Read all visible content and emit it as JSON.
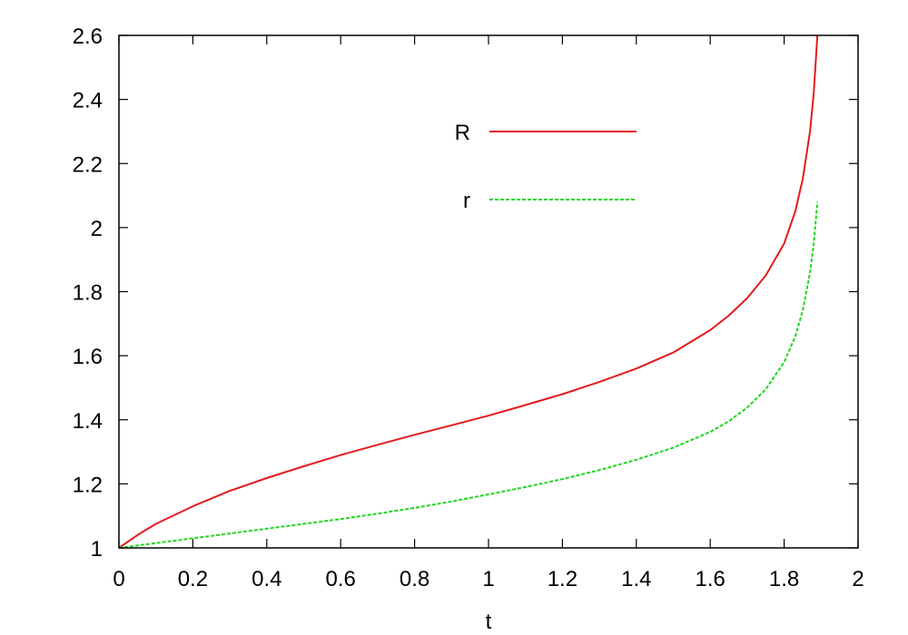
{
  "chart_data": {
    "type": "line",
    "title": "",
    "xlabel": "t",
    "ylabel": "",
    "xlim": [
      0,
      2
    ],
    "ylim": [
      1,
      2.6
    ],
    "xticks": [
      "0",
      "0.2",
      "0.4",
      "0.6",
      "0.8",
      "1",
      "1.2",
      "1.4",
      "1.6",
      "1.8",
      "2"
    ],
    "yticks": [
      "1",
      "1.2",
      "1.4",
      "1.6",
      "1.8",
      "2",
      "2.2",
      "2.4",
      "2.6"
    ],
    "grid": false,
    "legend_position": "top-center",
    "series": [
      {
        "name": "R",
        "color": "#e41a1c",
        "dash": "solid",
        "x": [
          0,
          0.05,
          0.1,
          0.2,
          0.3,
          0.4,
          0.5,
          0.6,
          0.7,
          0.8,
          0.9,
          1.0,
          1.1,
          1.2,
          1.3,
          1.4,
          1.5,
          1.6,
          1.65,
          1.7,
          1.75,
          1.8,
          1.83,
          1.85,
          1.87,
          1.88,
          1.89
        ],
        "y": [
          1.0,
          1.04,
          1.075,
          1.13,
          1.178,
          1.218,
          1.255,
          1.29,
          1.322,
          1.353,
          1.383,
          1.413,
          1.446,
          1.48,
          1.518,
          1.56,
          1.61,
          1.68,
          1.725,
          1.78,
          1.85,
          1.95,
          2.05,
          2.15,
          2.3,
          2.42,
          2.6
        ]
      },
      {
        "name": "r",
        "color": "#1fd51f",
        "dash": "dashed",
        "x": [
          0,
          0.1,
          0.2,
          0.3,
          0.4,
          0.5,
          0.6,
          0.7,
          0.8,
          0.9,
          1.0,
          1.1,
          1.2,
          1.3,
          1.4,
          1.5,
          1.6,
          1.65,
          1.7,
          1.75,
          1.8,
          1.83,
          1.85,
          1.87,
          1.88,
          1.89
        ],
        "y": [
          1.0,
          1.015,
          1.03,
          1.045,
          1.06,
          1.075,
          1.09,
          1.107,
          1.125,
          1.145,
          1.167,
          1.19,
          1.215,
          1.243,
          1.275,
          1.313,
          1.362,
          1.395,
          1.438,
          1.495,
          1.58,
          1.66,
          1.74,
          1.86,
          1.95,
          2.08
        ]
      }
    ]
  }
}
